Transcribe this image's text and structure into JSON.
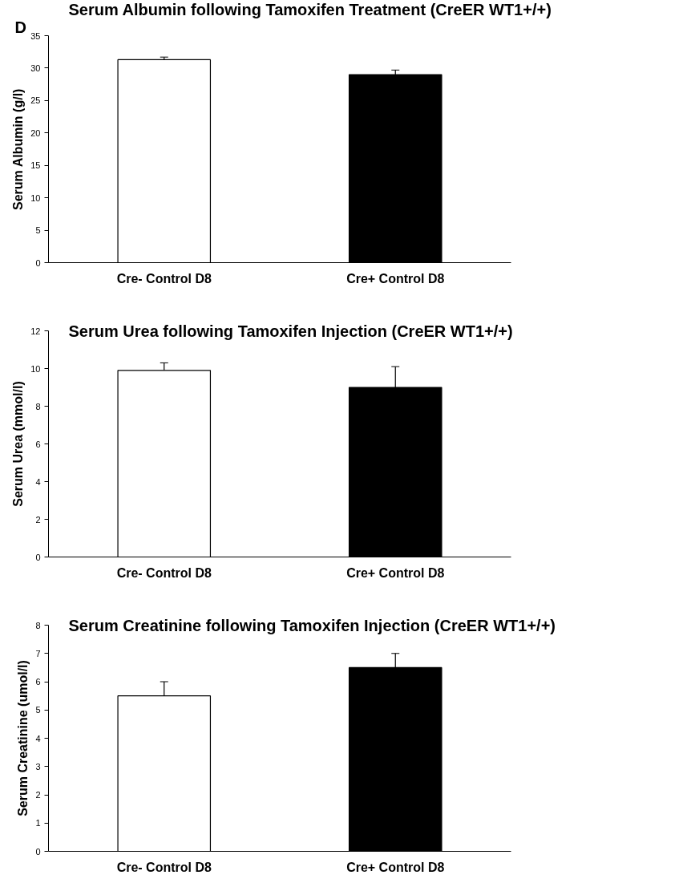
{
  "chart_data": [
    {
      "type": "bar",
      "title": "Serum Albumin following Tamoxifen Treatment (CreER WT1+/+)",
      "ylabel": "Serum Albumin (g/l)",
      "categories": [
        "Cre- Control D8",
        "Cre+ Control D8"
      ],
      "values": [
        31.3,
        29.0
      ],
      "colors": [
        "#ffffff",
        "#000000"
      ],
      "errors": [
        [
          31.3,
          31.7
        ],
        [
          29.0,
          29.7
        ]
      ],
      "ylim": [
        0,
        35
      ],
      "yticks": [
        0,
        5,
        10,
        15,
        20,
        25,
        30,
        35
      ],
      "grid": false,
      "annotations": [
        "D"
      ]
    },
    {
      "type": "bar",
      "title": "Serum Urea following Tamoxifen Injection (CreER WT1+/+)",
      "ylabel": "Serum Urea (mmol/l)",
      "categories": [
        "Cre- Control D8",
        "Cre+ Control D8"
      ],
      "values": [
        9.9,
        9.0
      ],
      "colors": [
        "#ffffff",
        "#000000"
      ],
      "errors": [
        [
          9.9,
          10.3
        ],
        [
          9.0,
          10.1
        ]
      ],
      "ylim": [
        0,
        12
      ],
      "yticks": [
        0,
        2,
        4,
        6,
        8,
        10,
        12
      ],
      "grid": false
    },
    {
      "type": "bar",
      "title": "Serum Creatinine following Tamoxifen Injection (CreER WT1+/+)",
      "ylabel": "Serum Creatinine (umol/l)",
      "categories": [
        "Cre- Control D8",
        "Cre+ Control D8"
      ],
      "values": [
        5.5,
        6.5
      ],
      "colors": [
        "#ffffff",
        "#000000"
      ],
      "errors": [
        [
          5.5,
          6.0
        ],
        [
          6.5,
          7.0
        ]
      ],
      "ylim": [
        0,
        8
      ],
      "yticks": [
        0,
        1,
        2,
        3,
        4,
        5,
        6,
        7,
        8
      ],
      "grid": false
    }
  ]
}
